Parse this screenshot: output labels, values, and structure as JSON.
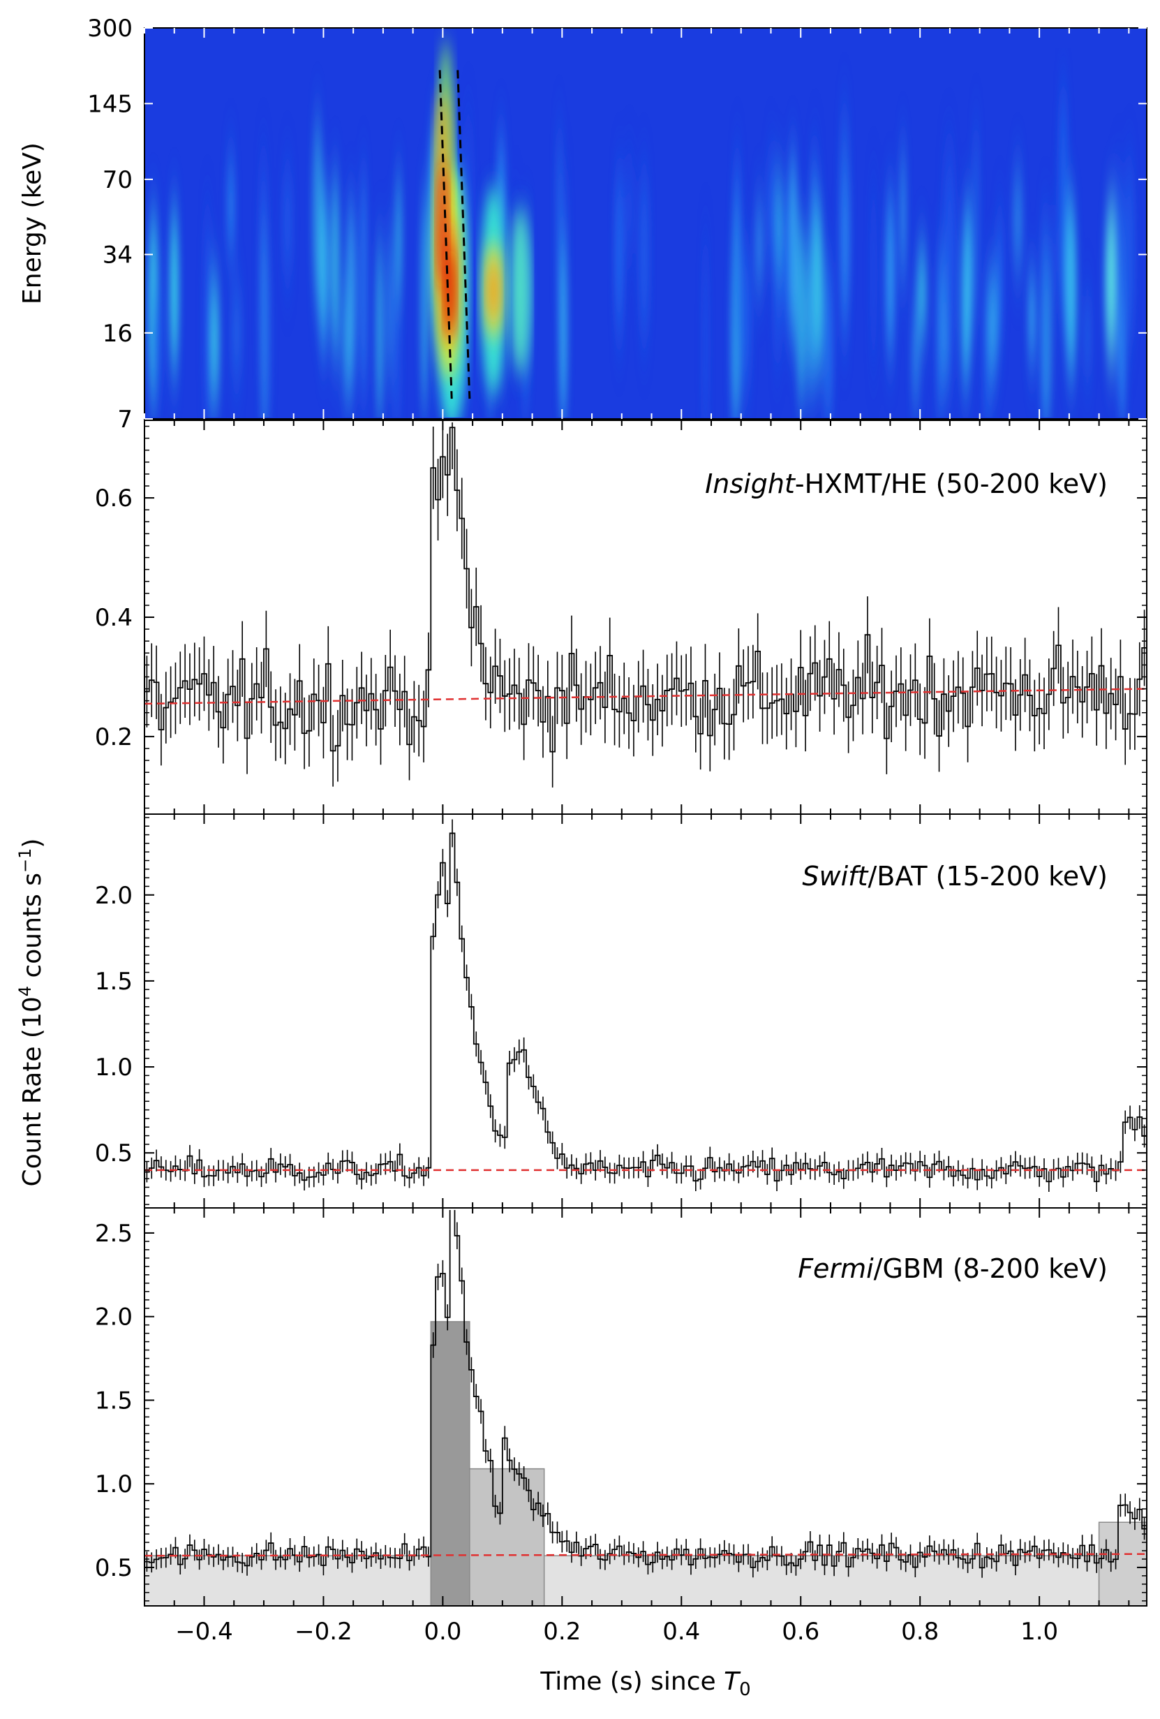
{
  "chart_data": [
    {
      "type": "heatmap",
      "panel": "spectrogram",
      "ylabel": "Energy (keV)",
      "yscale": "log",
      "ylim": [
        7,
        300
      ],
      "yticks": [
        "300",
        "145",
        "70",
        "34",
        "16",
        "7"
      ],
      "xlim": [
        -0.5,
        1.18
      ],
      "colormap": "jet",
      "peak_time_s": 0.0,
      "secondary_peak_time_s": 0.08,
      "peak_energy_keV": [
        15,
        40
      ],
      "dashed_lines": [
        {
          "t_top": -0.005,
          "e_top": 200,
          "t_bottom": 0.015,
          "e_bottom": 8.5
        },
        {
          "t_top": 0.025,
          "e_top": 200,
          "t_bottom": 0.045,
          "e_bottom": 8.5
        }
      ]
    },
    {
      "type": "line",
      "panel": "hxmt",
      "instrument": "Insight",
      "label_rest": "-HXMT/HE (50-200 keV)",
      "ylim": [
        0.07,
        0.73
      ],
      "yticks": [
        0.2,
        0.4,
        0.6
      ],
      "ytick_labels": [
        "0.2",
        "0.4",
        "0.6"
      ],
      "background": [
        0.255,
        0.28
      ],
      "baseline": 0.28,
      "peaks": [
        {
          "t": 0.0,
          "a": 0.4,
          "w": 0.02
        },
        {
          "t": 0.03,
          "a": 0.2,
          "w": 0.03
        }
      ],
      "noise": 0.06
    },
    {
      "type": "line",
      "panel": "bat",
      "instrument": "Swift",
      "label_rest": "/BAT (15-200 keV)",
      "ylim": [
        0.18,
        2.47
      ],
      "yticks": [
        0.5,
        1.0,
        1.5,
        2.0
      ],
      "ytick_labels": [
        "0.5",
        "1.0",
        "1.5",
        "2.0"
      ],
      "background": [
        0.4,
        0.4
      ],
      "baseline": 0.4,
      "peaks": [
        {
          "t": 0.0,
          "a": 1.75,
          "w": 0.022
        },
        {
          "t": 0.035,
          "a": 0.9,
          "w": 0.04
        },
        {
          "t": 0.13,
          "a": 0.65,
          "w": 0.035
        },
        {
          "t": 1.16,
          "a": 0.3,
          "w": 0.04
        }
      ],
      "noise": 0.06
    },
    {
      "type": "line",
      "panel": "gbm",
      "instrument": "Fermi",
      "label_rest": "/GBM (8-200 keV)",
      "ylim": [
        0.27,
        2.65
      ],
      "yticks": [
        0.5,
        1.0,
        1.5,
        2.0,
        2.5
      ],
      "ytick_labels": [
        "0.5",
        "1.0",
        "1.5",
        "2.0",
        "2.5"
      ],
      "background": [
        0.57,
        0.58
      ],
      "baseline": 0.57,
      "peaks": [
        {
          "t": 0.0,
          "a": 1.75,
          "w": 0.02
        },
        {
          "t": 0.035,
          "a": 1.2,
          "w": 0.04
        },
        {
          "t": 0.12,
          "a": 0.45,
          "w": 0.05
        },
        {
          "t": 1.15,
          "a": 0.3,
          "w": 0.04
        }
      ],
      "noise": 0.06,
      "shaded_blocks": [
        {
          "t0": -0.5,
          "t1": -0.02,
          "value": 0.57,
          "color": "#e2e2e2"
        },
        {
          "t0": -0.02,
          "t1": 0.045,
          "value": 1.97,
          "color": "#999999"
        },
        {
          "t0": 0.045,
          "t1": 0.17,
          "value": 1.09,
          "color": "#c4c4c4"
        },
        {
          "t0": 0.17,
          "t1": 1.1,
          "value": 0.57,
          "color": "#e2e2e2"
        },
        {
          "t0": 1.1,
          "t1": 1.18,
          "value": 0.77,
          "color": "#cfcfcf"
        }
      ]
    }
  ],
  "axes": {
    "x_ticks": [
      -0.4,
      -0.2,
      0.0,
      0.2,
      0.4,
      0.6,
      0.8,
      1.0
    ],
    "x_tick_labels": [
      "−0.4",
      "−0.2",
      "0.0",
      "0.2",
      "0.4",
      "0.6",
      "0.8",
      "1.0"
    ],
    "xlabel_text": "Time (s) since ",
    "xlabel_symbol": "T",
    "xlabel_subscript": "0",
    "shared_ylabel_pre": "Count Rate (10",
    "shared_ylabel_exp": "4",
    "shared_ylabel_mid": " counts s",
    "shared_ylabel_exp2": "−1",
    "shared_ylabel_post": ")"
  },
  "colors": {
    "data_line": "#000000",
    "background_fit": "#e03030",
    "dashed_marker": "#000000"
  }
}
